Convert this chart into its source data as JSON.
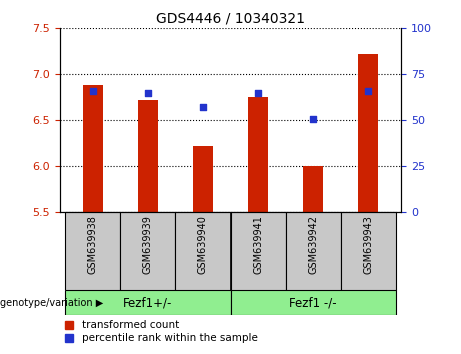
{
  "title": "GDS4446 / 10340321",
  "samples": [
    "GSM639938",
    "GSM639939",
    "GSM639940",
    "GSM639941",
    "GSM639942",
    "GSM639943"
  ],
  "transformed_counts": [
    6.88,
    6.72,
    6.22,
    6.75,
    6.0,
    7.22
  ],
  "percentile_ranks": [
    66,
    65,
    57,
    65,
    51,
    66
  ],
  "ylim_left": [
    5.5,
    7.5
  ],
  "ylim_right": [
    0,
    100
  ],
  "yticks_left": [
    5.5,
    6.0,
    6.5,
    7.0,
    7.5
  ],
  "yticks_right": [
    0,
    25,
    50,
    75,
    100
  ],
  "group1_label": "Fezf1+/-",
  "group2_label": "Fezf1 -/-",
  "group1_indices": [
    0,
    1,
    2
  ],
  "group2_indices": [
    3,
    4,
    5
  ],
  "bar_color": "#cc2200",
  "dot_color": "#2233cc",
  "bar_width": 0.35,
  "left_tick_color": "#cc2200",
  "right_tick_color": "#2233cc",
  "background_group": "#90ee90",
  "background_xticklabels": "#c8c8c8",
  "group_label": "genotype/variation",
  "legend_bar": "transformed count",
  "legend_dot": "percentile rank within the sample",
  "base_value": 5.5,
  "figsize": [
    4.61,
    3.54
  ],
  "dpi": 100
}
